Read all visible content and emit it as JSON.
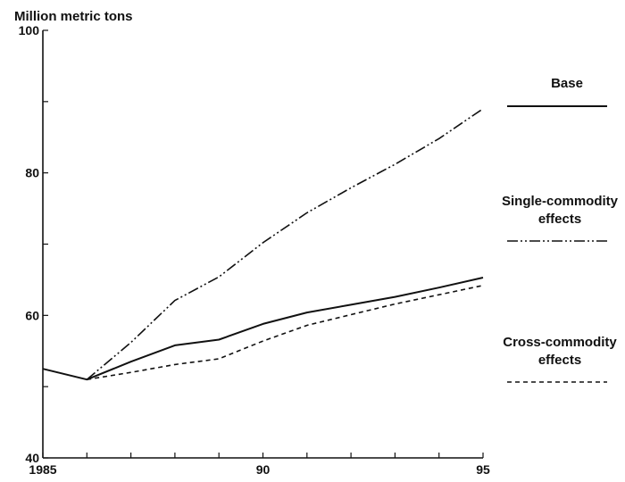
{
  "chart_data": {
    "type": "line",
    "ylabel": "Million metric tons",
    "xlabel": "",
    "title": "",
    "xlim": [
      1985,
      1995
    ],
    "ylim": [
      40,
      100
    ],
    "x_ticks": [
      1985,
      1990,
      1995
    ],
    "x_tick_labels": [
      "1985",
      "90",
      "95"
    ],
    "y_ticks": [
      40,
      60,
      80,
      100
    ],
    "y_tick_labels": [
      "40",
      "60",
      "80",
      "100"
    ],
    "grid": false,
    "legend_position": "right",
    "series": [
      {
        "name": "Base",
        "style": "solid",
        "x": [
          1985,
          1986,
          1987,
          1988,
          1989,
          1990,
          1991,
          1992,
          1993,
          1994,
          1995
        ],
        "values": [
          52.5,
          51.0,
          53.5,
          55.8,
          56.6,
          58.8,
          60.4,
          61.5,
          62.6,
          63.9,
          65.3
        ]
      },
      {
        "name": "Single-commodity effects",
        "style": "dash-dot-dot",
        "x": [
          1986,
          1987,
          1988,
          1989,
          1990,
          1991,
          1992,
          1993,
          1994,
          1995
        ],
        "values": [
          51.0,
          56.2,
          62.1,
          65.4,
          70.2,
          74.4,
          77.9,
          81.2,
          84.8,
          89.0
        ]
      },
      {
        "name": "Cross-commodity effects",
        "style": "dashed",
        "x": [
          1986,
          1987,
          1988,
          1989,
          1990,
          1991,
          1992,
          1993,
          1994,
          1995
        ],
        "values": [
          51.0,
          52.0,
          53.1,
          53.9,
          56.4,
          58.6,
          60.1,
          61.6,
          62.9,
          64.2
        ]
      }
    ],
    "legend": [
      {
        "label": "Base"
      },
      {
        "label": "Single-commodity\neffects"
      },
      {
        "label": "Cross-commodity\neffects"
      }
    ]
  }
}
